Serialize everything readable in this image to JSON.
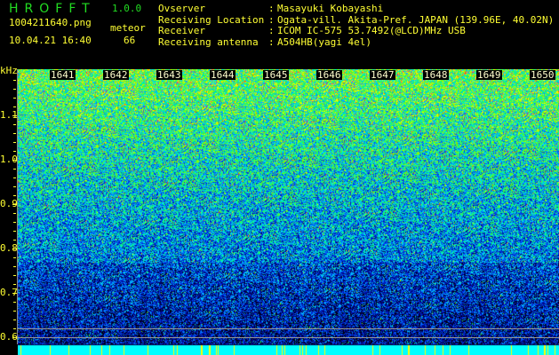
{
  "header": {
    "app_title": "HROFFT",
    "version": "1.0.0",
    "filename": "1004211640.png",
    "datetime": "10.04.21 16:40",
    "meteor_label": "meteor",
    "meteor_count": "66"
  },
  "station": [
    {
      "label": "Ovserver",
      "value": "Masayuki Kobayashi"
    },
    {
      "label": "Receiving Location",
      "value": "Ogata-vill. Akita-Pref. JAPAN (139.96E, 40.02N)"
    },
    {
      "label": "Receiver",
      "value": "ICOM IC-575 53.7492(@LCD)MHz USB"
    },
    {
      "label": "Receiving antenna",
      "value": "A504HB(yagi 4el)"
    }
  ],
  "spectrogram": {
    "y_unit": "kHz",
    "y_range": [
      0.584,
      1.204
    ],
    "y_ticks": [
      "1.1",
      "1.0",
      "0.9",
      "0.8",
      "0.7",
      "0.6"
    ],
    "time_labels": [
      "1641",
      "1642",
      "1643",
      "1644",
      "1645",
      "1646",
      "1647",
      "1648",
      "1649",
      "1650"
    ],
    "reference_lines_khz": [
      0.6,
      0.62
    ]
  }
}
